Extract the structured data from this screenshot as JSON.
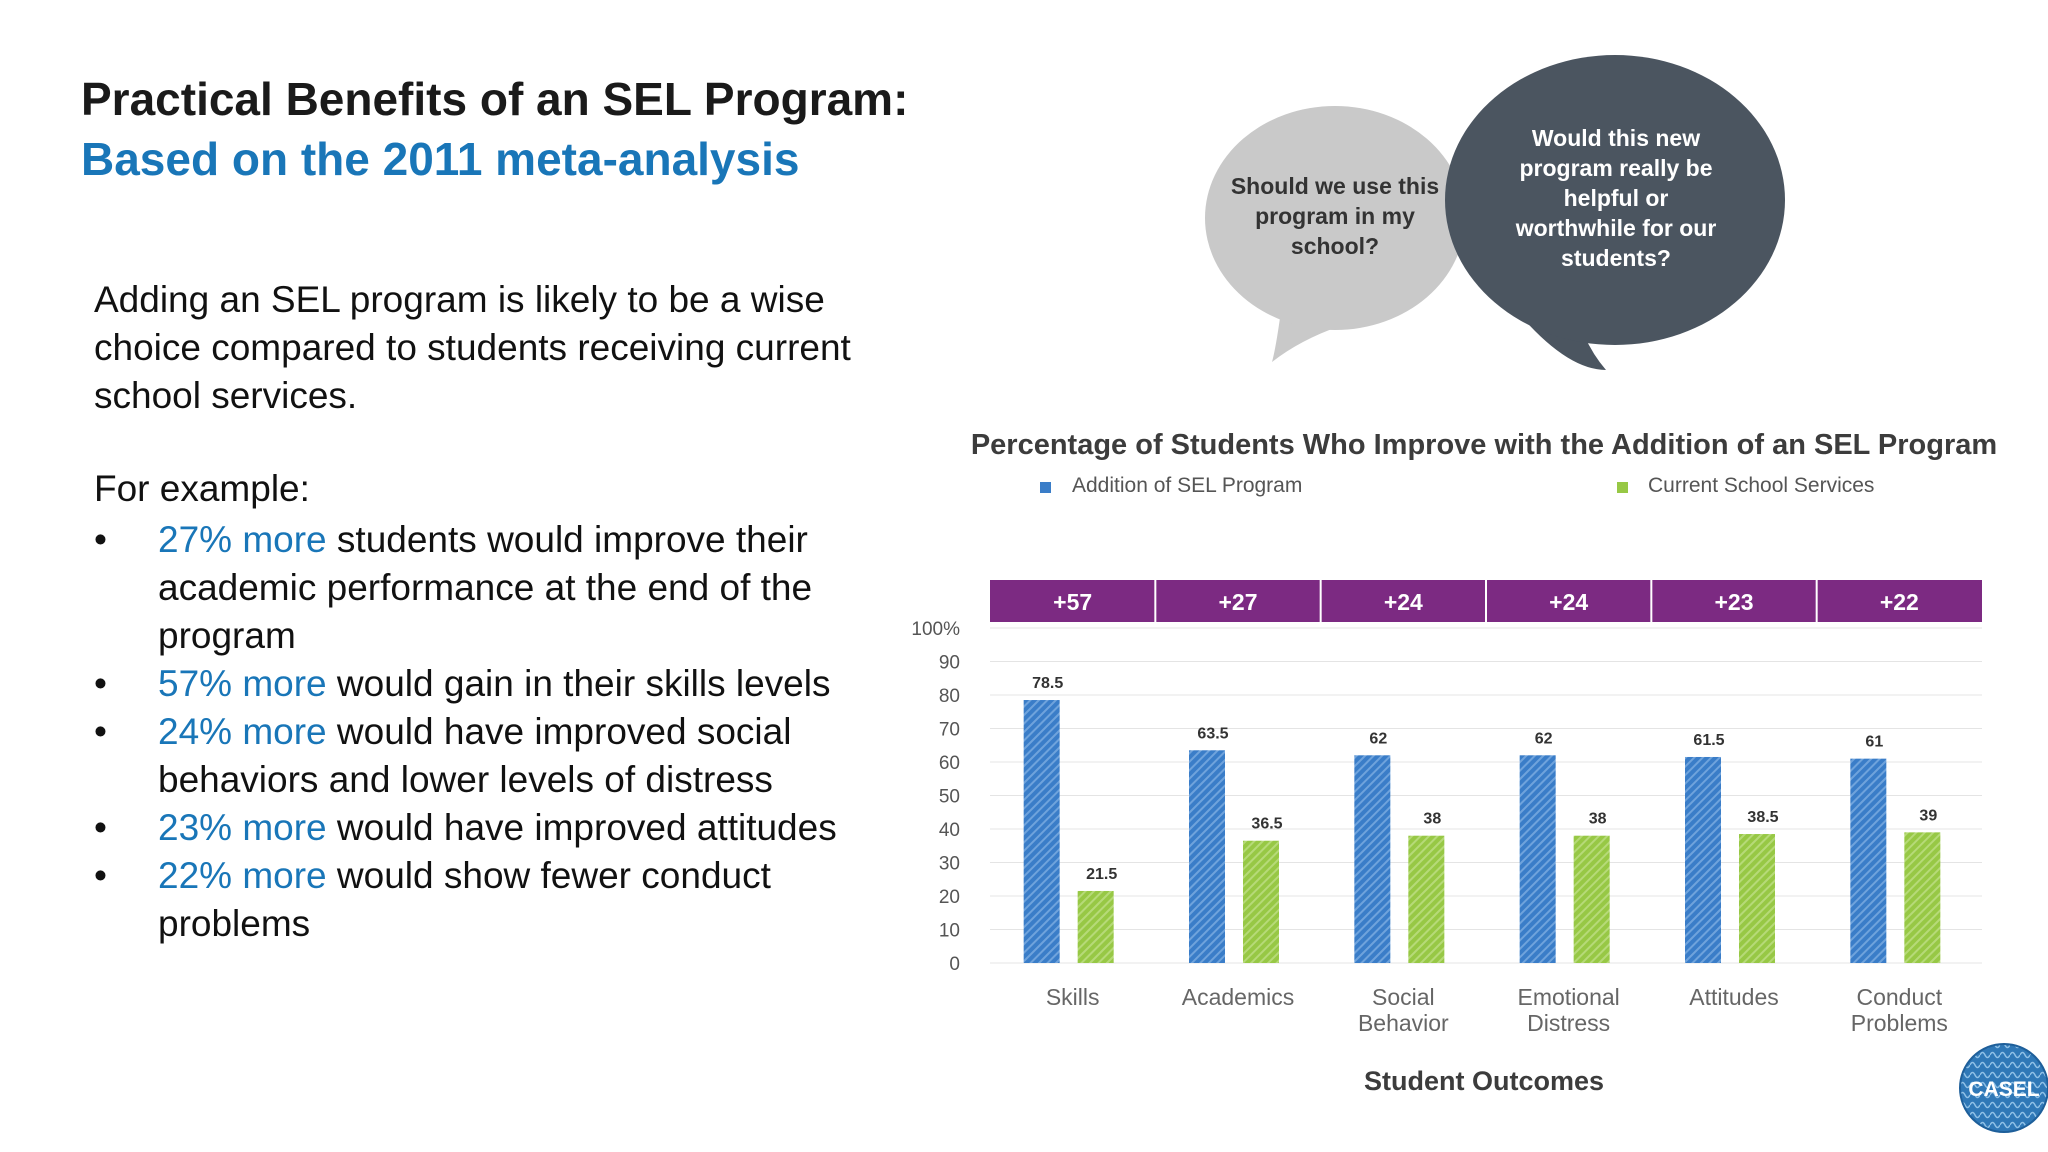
{
  "slide": {
    "title": "Practical Benefits of an SEL Program:",
    "subtitle": "Based on the 2011 meta-analysis",
    "intro": "Adding an SEL program is likely to be a wise choice compared to students receiving current school services.",
    "example_label": "For example:",
    "bullets": [
      {
        "highlight": "27% more",
        "text": " students would improve their academic performance at the end of the program"
      },
      {
        "highlight": "57% more",
        "text": " would gain in their skills levels"
      },
      {
        "highlight": "24% more",
        "text": " would have improved social behaviors and lower levels of distress"
      },
      {
        "highlight": "23% more",
        "text": " would have improved attitudes"
      },
      {
        "highlight": "22% more",
        "text": " would show fewer conduct problems"
      }
    ]
  },
  "bubbles": {
    "left": "Should we use this program in my school?",
    "right": "Would this new program really be helpful or worthwhile for our students?"
  },
  "logo": {
    "text": "CASEL"
  },
  "colors": {
    "accent": "#1976b8",
    "sel": "#3a7dc8",
    "current": "#97c845",
    "diff_band": "#7c2a82",
    "bubble_light": "#c9c9c9",
    "bubble_dark": "#4b5560"
  },
  "chart_data": {
    "type": "bar",
    "title": "Percentage of Students Who Improve with the Addition of an SEL Program",
    "xlabel": "Student Outcomes",
    "ylabel": "",
    "ylim": [
      0,
      100
    ],
    "y_ticks": [
      "0",
      "10",
      "20",
      "30",
      "40",
      "50",
      "60",
      "70",
      "80",
      "90",
      "100%"
    ],
    "categories": [
      [
        "Skills"
      ],
      [
        "Academics"
      ],
      [
        "Social",
        "Behavior"
      ],
      [
        "Emotional",
        "Distress"
      ],
      [
        "Attitudes"
      ],
      [
        "Conduct",
        "Problems"
      ]
    ],
    "differences": [
      "+57",
      "+27",
      "+24",
      "+24",
      "+23",
      "+22"
    ],
    "series": [
      {
        "name": "Addition of SEL Program",
        "values": [
          78.5,
          63.5,
          62,
          62,
          61.5,
          61
        ],
        "labels": [
          "78.5",
          "63.5",
          "62",
          "62",
          "61.5",
          "61"
        ]
      },
      {
        "name": "Current School Services",
        "values": [
          21.5,
          36.5,
          38,
          38,
          38.5,
          39
        ],
        "labels": [
          "21.5",
          "36.5",
          "38",
          "38",
          "38.5",
          "39"
        ]
      }
    ],
    "grid": true,
    "legend": "top"
  }
}
